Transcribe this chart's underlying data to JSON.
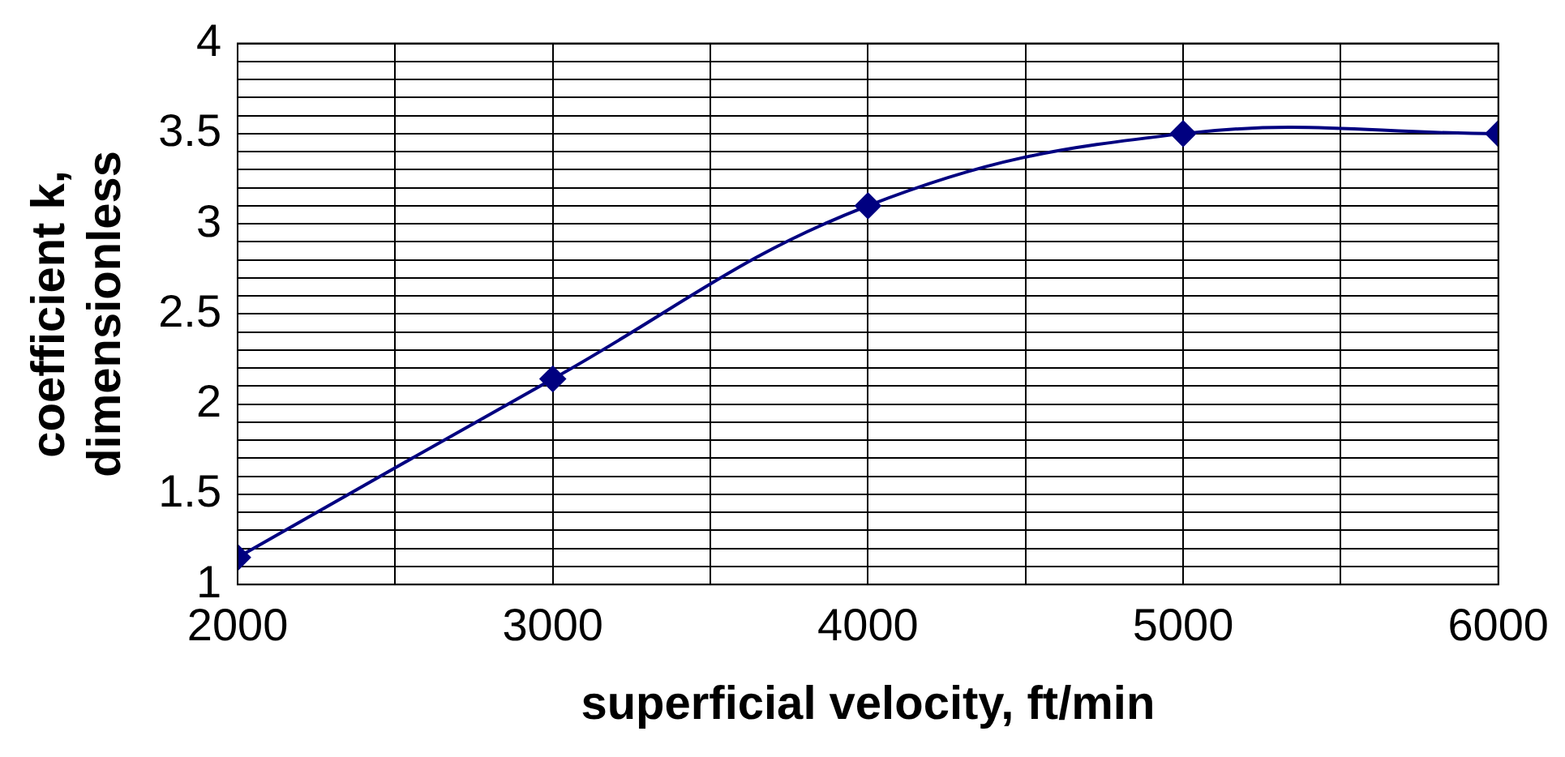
{
  "chart_data": {
    "type": "line",
    "xlabel": "superficial velocity, ft/min",
    "ylabel": "coefficient k,\ndimensionless",
    "x": [
      2000,
      3000,
      4000,
      5000,
      6000
    ],
    "series": [
      {
        "color": "#000080",
        "values": [
          1.15,
          2.14,
          3.1,
          3.5,
          3.5
        ]
      }
    ],
    "xlim": [
      2000,
      6000
    ],
    "xticks": [
      2000,
      {
        "value": 2500,
        "label": null
      },
      3000,
      {
        "value": 3500,
        "label": null
      },
      4000,
      {
        "value": 4500,
        "label": null
      },
      5000,
      {
        "value": 5500,
        "label": null
      },
      6000
    ],
    "ylim": [
      1,
      4
    ],
    "yticks": [
      1,
      {
        "value": 1.1,
        "label": null
      },
      {
        "value": 1.2,
        "label": null
      },
      {
        "value": 1.3,
        "label": null
      },
      {
        "value": 1.4,
        "label": null
      },
      1.5,
      {
        "value": 1.6,
        "label": null
      },
      {
        "value": 1.7,
        "label": null
      },
      {
        "value": 1.8,
        "label": null
      },
      {
        "value": 1.9,
        "label": null
      },
      2,
      {
        "value": 2.1,
        "label": null
      },
      {
        "value": 2.2,
        "label": null
      },
      {
        "value": 2.3,
        "label": null
      },
      {
        "value": 2.4,
        "label": null
      },
      2.5,
      {
        "value": 2.6,
        "label": null
      },
      {
        "value": 2.7,
        "label": null
      },
      {
        "value": 2.8,
        "label": null
      },
      {
        "value": 2.9,
        "label": null
      },
      3,
      {
        "value": 3.1,
        "label": null
      },
      {
        "value": 3.2,
        "label": null
      },
      {
        "value": 3.3,
        "label": null
      },
      {
        "value": 3.4,
        "label": null
      },
      3.5,
      {
        "value": 3.6,
        "label": null
      },
      {
        "value": 3.7,
        "label": null
      },
      {
        "value": 3.8,
        "label": null
      },
      {
        "value": 3.9,
        "label": null
      },
      4
    ],
    "grid": true,
    "legend": false,
    "marker": "diamond",
    "line_style": "solid"
  }
}
